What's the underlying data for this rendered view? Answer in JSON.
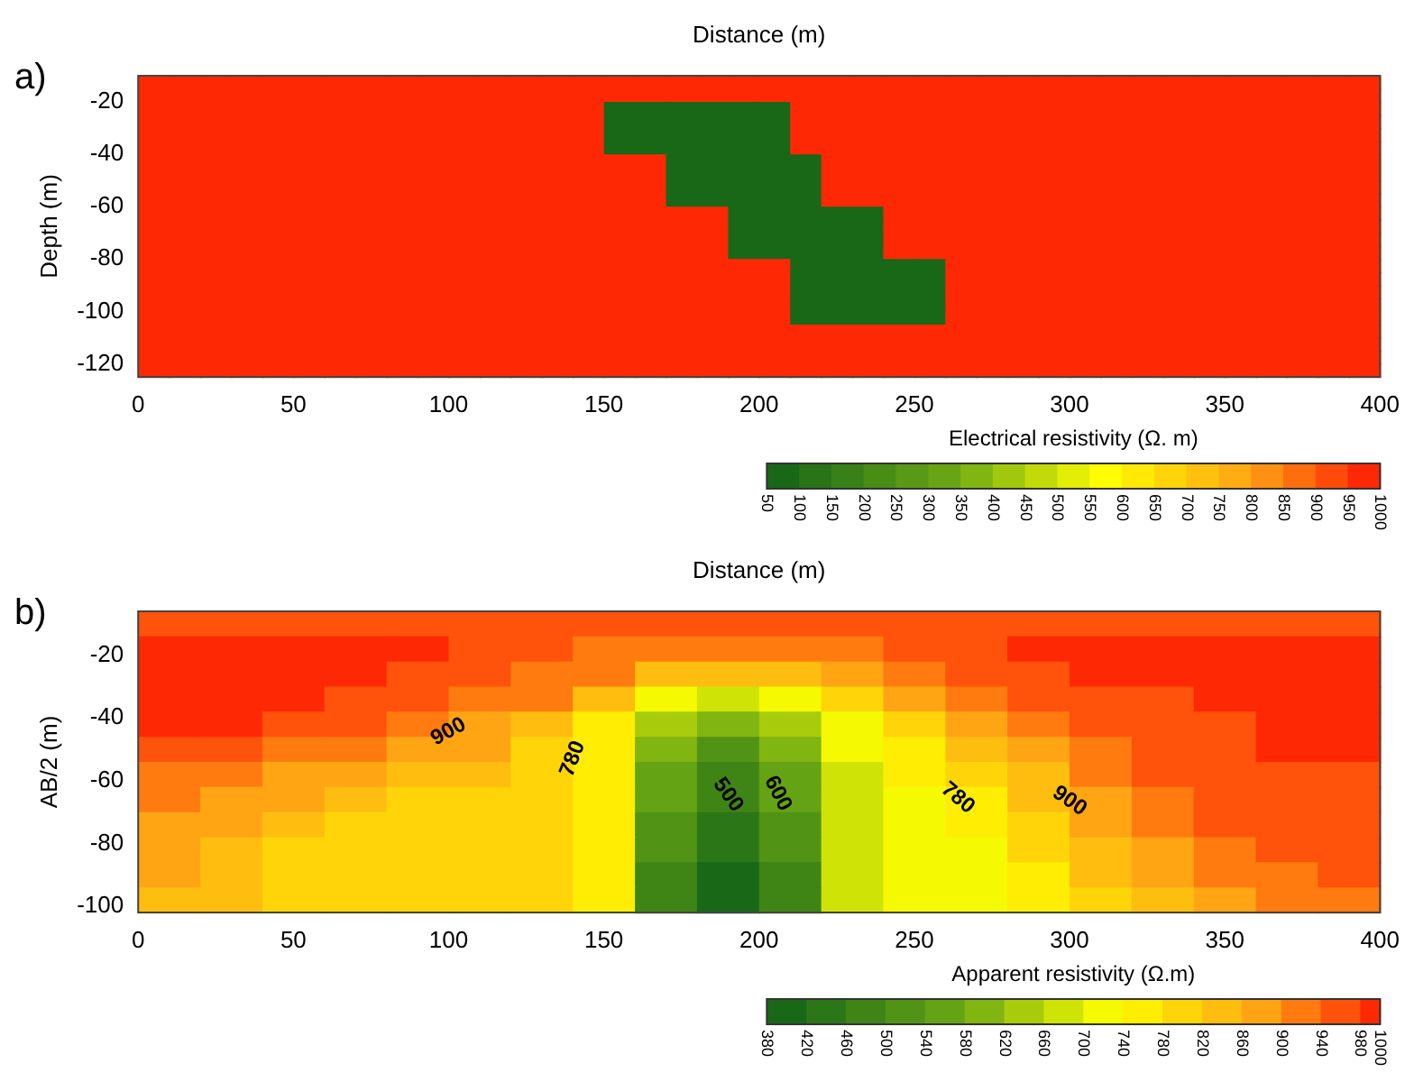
{
  "chart_data": [
    {
      "type": "heatmap",
      "xlabel": "Distance (m)",
      "ylabel": "Depth (m)",
      "clabel": "Electrical resistivity (Ω. m)",
      "annotations": [
        "a)"
      ],
      "xlim": [
        0,
        400
      ],
      "xticks": [
        0,
        50,
        100,
        150,
        200,
        250,
        300,
        350,
        400
      ],
      "ylim": [
        -125,
        -10
      ],
      "yticks": [
        -20,
        -40,
        -60,
        -80,
        -100,
        -120
      ],
      "clim": [
        50,
        1000
      ],
      "cticks": [
        50,
        100,
        150,
        200,
        250,
        300,
        350,
        400,
        450,
        500,
        550,
        600,
        650,
        700,
        750,
        800,
        850,
        900,
        950,
        1000
      ],
      "cells": [
        [
          1000,
          1000,
          1000,
          1000,
          1000,
          1000,
          1000,
          1000,
          1000,
          1000,
          1000,
          1000,
          1000,
          1000,
          1000,
          1000,
          1000,
          1000,
          1000,
          1000,
          1000,
          1000,
          1000,
          1000,
          1000,
          1000,
          1000,
          1000,
          1000,
          1000,
          1000,
          1000,
          1000,
          1000,
          1000,
          1000,
          1000,
          1000,
          1000,
          1000
        ],
        [
          1000,
          1000,
          1000,
          1000,
          1000,
          1000,
          1000,
          1000,
          1000,
          1000,
          1000,
          1000,
          1000,
          1000,
          1000,
          1000,
          1000,
          1000,
          1000,
          1000,
          1000,
          1000,
          1000,
          1000,
          1000,
          1000,
          1000,
          1000,
          1000,
          1000,
          1000,
          1000,
          1000,
          1000,
          1000,
          1000,
          1000,
          1000,
          1000,
          1000
        ],
        [
          1000,
          1000,
          1000,
          1000,
          1000,
          1000,
          1000,
          1000,
          1000,
          1000,
          1000,
          1000,
          1000,
          1000,
          1000,
          50,
          50,
          50,
          50,
          50,
          50,
          1000,
          1000,
          1000,
          1000,
          1000,
          1000,
          1000,
          1000,
          1000,
          1000,
          1000,
          1000,
          1000,
          1000,
          1000,
          1000,
          1000,
          1000,
          1000
        ],
        [
          1000,
          1000,
          1000,
          1000,
          1000,
          1000,
          1000,
          1000,
          1000,
          1000,
          1000,
          1000,
          1000,
          1000,
          1000,
          50,
          50,
          50,
          50,
          50,
          50,
          1000,
          1000,
          1000,
          1000,
          1000,
          1000,
          1000,
          1000,
          1000,
          1000,
          1000,
          1000,
          1000,
          1000,
          1000,
          1000,
          1000,
          1000,
          1000
        ],
        [
          1000,
          1000,
          1000,
          1000,
          1000,
          1000,
          1000,
          1000,
          1000,
          1000,
          1000,
          1000,
          1000,
          1000,
          1000,
          50,
          50,
          50,
          50,
          50,
          50,
          1000,
          1000,
          1000,
          1000,
          1000,
          1000,
          1000,
          1000,
          1000,
          1000,
          1000,
          1000,
          1000,
          1000,
          1000,
          1000,
          1000,
          1000,
          1000
        ],
        [
          1000,
          1000,
          1000,
          1000,
          1000,
          1000,
          1000,
          1000,
          1000,
          1000,
          1000,
          1000,
          1000,
          1000,
          1000,
          50,
          50,
          50,
          50,
          50,
          50,
          1000,
          1000,
          1000,
          1000,
          1000,
          1000,
          1000,
          1000,
          1000,
          1000,
          1000,
          1000,
          1000,
          1000,
          1000,
          1000,
          1000,
          1000,
          1000
        ],
        [
          1000,
          1000,
          1000,
          1000,
          1000,
          1000,
          1000,
          1000,
          1000,
          1000,
          1000,
          1000,
          1000,
          1000,
          1000,
          1000,
          1000,
          50,
          50,
          50,
          50,
          50,
          1000,
          1000,
          1000,
          1000,
          1000,
          1000,
          1000,
          1000,
          1000,
          1000,
          1000,
          1000,
          1000,
          1000,
          1000,
          1000,
          1000,
          1000
        ],
        [
          1000,
          1000,
          1000,
          1000,
          1000,
          1000,
          1000,
          1000,
          1000,
          1000,
          1000,
          1000,
          1000,
          1000,
          1000,
          1000,
          1000,
          50,
          50,
          50,
          50,
          50,
          1000,
          1000,
          1000,
          1000,
          1000,
          1000,
          1000,
          1000,
          1000,
          1000,
          1000,
          1000,
          1000,
          1000,
          1000,
          1000,
          1000,
          1000
        ],
        [
          1000,
          1000,
          1000,
          1000,
          1000,
          1000,
          1000,
          1000,
          1000,
          1000,
          1000,
          1000,
          1000,
          1000,
          1000,
          1000,
          1000,
          50,
          50,
          50,
          50,
          50,
          1000,
          1000,
          1000,
          1000,
          1000,
          1000,
          1000,
          1000,
          1000,
          1000,
          1000,
          1000,
          1000,
          1000,
          1000,
          1000,
          1000,
          1000
        ],
        [
          1000,
          1000,
          1000,
          1000,
          1000,
          1000,
          1000,
          1000,
          1000,
          1000,
          1000,
          1000,
          1000,
          1000,
          1000,
          1000,
          1000,
          50,
          50,
          50,
          50,
          50,
          1000,
          1000,
          1000,
          1000,
          1000,
          1000,
          1000,
          1000,
          1000,
          1000,
          1000,
          1000,
          1000,
          1000,
          1000,
          1000,
          1000,
          1000
        ],
        [
          1000,
          1000,
          1000,
          1000,
          1000,
          1000,
          1000,
          1000,
          1000,
          1000,
          1000,
          1000,
          1000,
          1000,
          1000,
          1000,
          1000,
          1000,
          1000,
          50,
          50,
          50,
          50,
          50,
          1000,
          1000,
          1000,
          1000,
          1000,
          1000,
          1000,
          1000,
          1000,
          1000,
          1000,
          1000,
          1000,
          1000,
          1000,
          1000
        ],
        [
          1000,
          1000,
          1000,
          1000,
          1000,
          1000,
          1000,
          1000,
          1000,
          1000,
          1000,
          1000,
          1000,
          1000,
          1000,
          1000,
          1000,
          1000,
          1000,
          50,
          50,
          50,
          50,
          50,
          1000,
          1000,
          1000,
          1000,
          1000,
          1000,
          1000,
          1000,
          1000,
          1000,
          1000,
          1000,
          1000,
          1000,
          1000,
          1000
        ],
        [
          1000,
          1000,
          1000,
          1000,
          1000,
          1000,
          1000,
          1000,
          1000,
          1000,
          1000,
          1000,
          1000,
          1000,
          1000,
          1000,
          1000,
          1000,
          1000,
          50,
          50,
          50,
          50,
          50,
          1000,
          1000,
          1000,
          1000,
          1000,
          1000,
          1000,
          1000,
          1000,
          1000,
          1000,
          1000,
          1000,
          1000,
          1000,
          1000
        ],
        [
          1000,
          1000,
          1000,
          1000,
          1000,
          1000,
          1000,
          1000,
          1000,
          1000,
          1000,
          1000,
          1000,
          1000,
          1000,
          1000,
          1000,
          1000,
          1000,
          50,
          50,
          50,
          50,
          50,
          1000,
          1000,
          1000,
          1000,
          1000,
          1000,
          1000,
          1000,
          1000,
          1000,
          1000,
          1000,
          1000,
          1000,
          1000,
          1000
        ],
        [
          1000,
          1000,
          1000,
          1000,
          1000,
          1000,
          1000,
          1000,
          1000,
          1000,
          1000,
          1000,
          1000,
          1000,
          1000,
          1000,
          1000,
          1000,
          1000,
          1000,
          1000,
          50,
          50,
          50,
          50,
          50,
          1000,
          1000,
          1000,
          1000,
          1000,
          1000,
          1000,
          1000,
          1000,
          1000,
          1000,
          1000,
          1000,
          1000
        ],
        [
          1000,
          1000,
          1000,
          1000,
          1000,
          1000,
          1000,
          1000,
          1000,
          1000,
          1000,
          1000,
          1000,
          1000,
          1000,
          1000,
          1000,
          1000,
          1000,
          1000,
          1000,
          50,
          50,
          50,
          50,
          50,
          1000,
          1000,
          1000,
          1000,
          1000,
          1000,
          1000,
          1000,
          1000,
          1000,
          1000,
          1000,
          1000,
          1000
        ],
        [
          1000,
          1000,
          1000,
          1000,
          1000,
          1000,
          1000,
          1000,
          1000,
          1000,
          1000,
          1000,
          1000,
          1000,
          1000,
          1000,
          1000,
          1000,
          1000,
          1000,
          1000,
          50,
          50,
          50,
          50,
          50,
          1000,
          1000,
          1000,
          1000,
          1000,
          1000,
          1000,
          1000,
          1000,
          1000,
          1000,
          1000,
          1000,
          1000
        ],
        [
          1000,
          1000,
          1000,
          1000,
          1000,
          1000,
          1000,
          1000,
          1000,
          1000,
          1000,
          1000,
          1000,
          1000,
          1000,
          1000,
          1000,
          1000,
          1000,
          1000,
          1000,
          50,
          50,
          50,
          50,
          50,
          1000,
          1000,
          1000,
          1000,
          1000,
          1000,
          1000,
          1000,
          1000,
          1000,
          1000,
          1000,
          1000,
          1000
        ],
        [
          1000,
          1000,
          1000,
          1000,
          1000,
          1000,
          1000,
          1000,
          1000,
          1000,
          1000,
          1000,
          1000,
          1000,
          1000,
          1000,
          1000,
          1000,
          1000,
          1000,
          1000,
          50,
          50,
          50,
          50,
          50,
          1000,
          1000,
          1000,
          1000,
          1000,
          1000,
          1000,
          1000,
          1000,
          1000,
          1000,
          1000,
          1000,
          1000
        ],
        [
          1000,
          1000,
          1000,
          1000,
          1000,
          1000,
          1000,
          1000,
          1000,
          1000,
          1000,
          1000,
          1000,
          1000,
          1000,
          1000,
          1000,
          1000,
          1000,
          1000,
          1000,
          1000,
          1000,
          1000,
          1000,
          1000,
          1000,
          1000,
          1000,
          1000,
          1000,
          1000,
          1000,
          1000,
          1000,
          1000,
          1000,
          1000,
          1000,
          1000
        ],
        [
          1000,
          1000,
          1000,
          1000,
          1000,
          1000,
          1000,
          1000,
          1000,
          1000,
          1000,
          1000,
          1000,
          1000,
          1000,
          1000,
          1000,
          1000,
          1000,
          1000,
          1000,
          1000,
          1000,
          1000,
          1000,
          1000,
          1000,
          1000,
          1000,
          1000,
          1000,
          1000,
          1000,
          1000,
          1000,
          1000,
          1000,
          1000,
          1000,
          1000
        ],
        [
          1000,
          1000,
          1000,
          1000,
          1000,
          1000,
          1000,
          1000,
          1000,
          1000,
          1000,
          1000,
          1000,
          1000,
          1000,
          1000,
          1000,
          1000,
          1000,
          1000,
          1000,
          1000,
          1000,
          1000,
          1000,
          1000,
          1000,
          1000,
          1000,
          1000,
          1000,
          1000,
          1000,
          1000,
          1000,
          1000,
          1000,
          1000,
          1000,
          1000
        ],
        [
          1000,
          1000,
          1000,
          1000,
          1000,
          1000,
          1000,
          1000,
          1000,
          1000,
          1000,
          1000,
          1000,
          1000,
          1000,
          1000,
          1000,
          1000,
          1000,
          1000,
          1000,
          1000,
          1000,
          1000,
          1000,
          1000,
          1000,
          1000,
          1000,
          1000,
          1000,
          1000,
          1000,
          1000,
          1000,
          1000,
          1000,
          1000,
          1000,
          1000
        ]
      ]
    },
    {
      "type": "heatmap",
      "xlabel": "Distance (m)",
      "ylabel": "AB/2 (m)",
      "clabel": "Apparent resistivity (Ω.m)",
      "annotations": [
        "b)",
        "900",
        "780",
        "500",
        "600",
        "780",
        "900"
      ],
      "xlim": [
        0,
        400
      ],
      "xticks": [
        0,
        50,
        100,
        150,
        200,
        250,
        300,
        350,
        400
      ],
      "ylim": [
        -102,
        -6
      ],
      "yticks": [
        -20,
        -40,
        -60,
        -80,
        -100
      ],
      "clim": [
        380,
        1000
      ],
      "cticks": [
        380,
        420,
        460,
        500,
        540,
        580,
        620,
        660,
        700,
        740,
        780,
        820,
        860,
        900,
        940,
        980,
        1000
      ],
      "cells": [
        [
          970,
          970,
          970,
          970,
          970,
          950,
          950,
          950,
          950,
          950,
          950,
          950,
          950,
          970,
          970,
          970,
          970,
          970,
          970,
          970
        ],
        [
          990,
          990,
          990,
          990,
          990,
          960,
          950,
          930,
          920,
          920,
          920,
          930,
          950,
          960,
          990,
          990,
          990,
          990,
          990,
          990
        ],
        [
          990,
          990,
          990,
          990,
          950,
          950,
          930,
          900,
          840,
          820,
          840,
          880,
          920,
          950,
          950,
          990,
          990,
          990,
          990,
          990
        ],
        [
          990,
          990,
          990,
          950,
          950,
          920,
          900,
          820,
          720,
          680,
          720,
          800,
          860,
          920,
          950,
          950,
          950,
          990,
          990,
          990
        ],
        [
          990,
          990,
          950,
          950,
          900,
          880,
          840,
          760,
          640,
          580,
          620,
          720,
          800,
          860,
          920,
          950,
          950,
          950,
          990,
          990
        ],
        [
          950,
          950,
          920,
          900,
          880,
          860,
          800,
          740,
          580,
          520,
          580,
          700,
          760,
          820,
          880,
          920,
          950,
          950,
          980,
          980
        ],
        [
          920,
          920,
          880,
          860,
          840,
          820,
          790,
          740,
          560,
          490,
          560,
          680,
          740,
          780,
          850,
          900,
          940,
          950,
          950,
          950
        ],
        [
          900,
          880,
          860,
          820,
          800,
          790,
          780,
          740,
          540,
          470,
          540,
          660,
          730,
          760,
          820,
          880,
          920,
          950,
          950,
          950
        ],
        [
          880,
          860,
          820,
          800,
          790,
          780,
          780,
          740,
          520,
          440,
          520,
          660,
          720,
          740,
          800,
          860,
          900,
          940,
          950,
          950
        ],
        [
          860,
          840,
          800,
          780,
          780,
          780,
          800,
          740,
          500,
          420,
          500,
          680,
          720,
          730,
          780,
          840,
          880,
          920,
          940,
          950
        ],
        [
          860,
          820,
          800,
          780,
          780,
          800,
          800,
          740,
          490,
          400,
          480,
          680,
          720,
          730,
          760,
          820,
          860,
          900,
          920,
          940
        ],
        [
          840,
          820,
          800,
          780,
          780,
          800,
          800,
          740,
          480,
          390,
          470,
          680,
          720,
          730,
          760,
          800,
          840,
          880,
          900,
          920
        ]
      ]
    }
  ]
}
